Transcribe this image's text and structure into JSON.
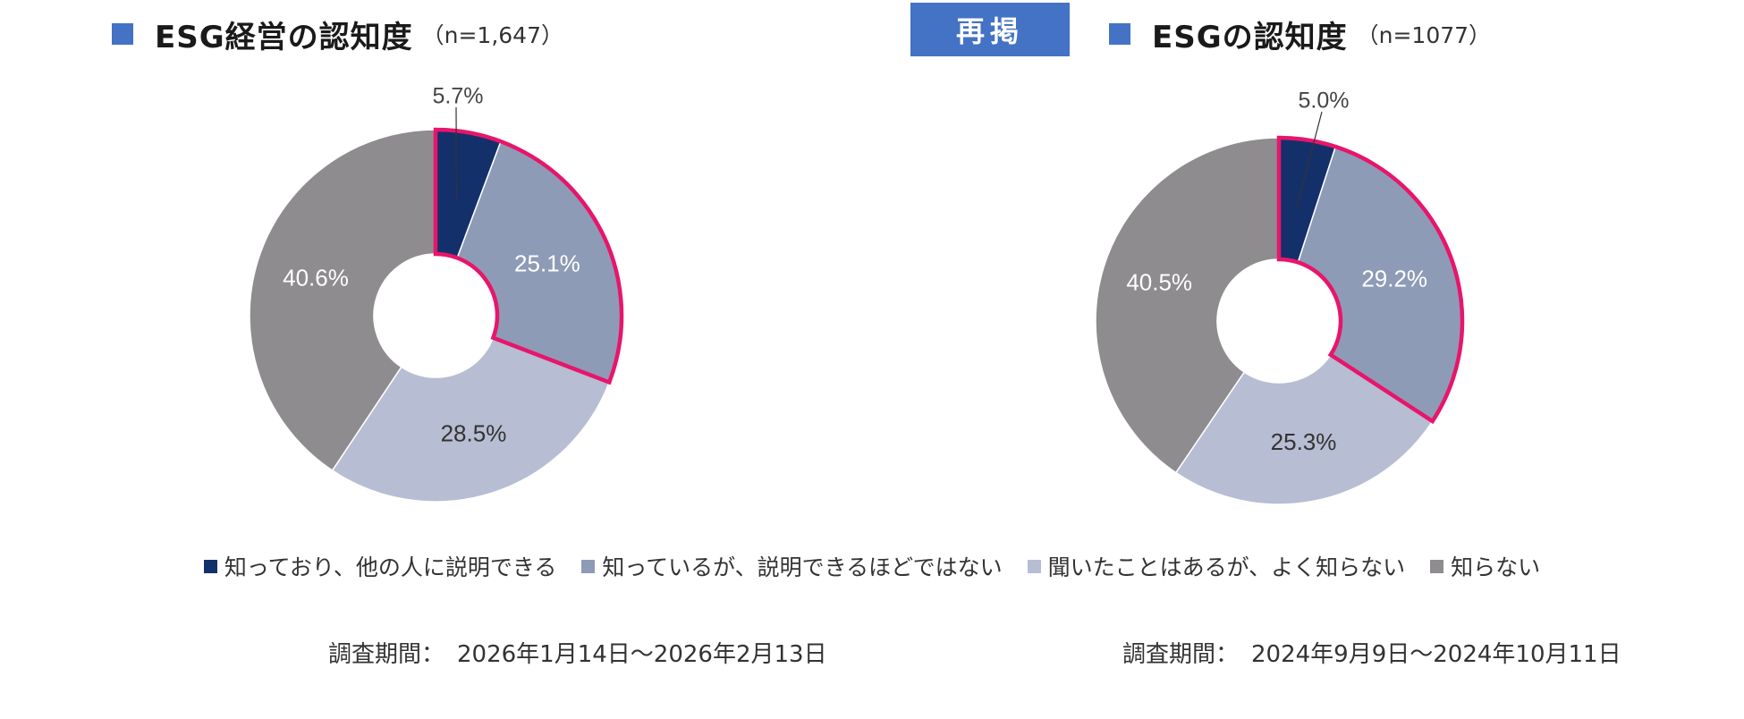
{
  "badge": {
    "label": "再掲",
    "color": "#4472C4"
  },
  "titles": [
    {
      "main": "ESG経営の認知度",
      "n": "（n=1,647）"
    },
    {
      "main": "ESGの認知度",
      "n": "（n=1077）"
    }
  ],
  "legend": [
    {
      "label": "知っており、他の人に説明できる",
      "color": "#14306B"
    },
    {
      "label": "知っているが、説明できるほどではない",
      "color": "#8E9BB6"
    },
    {
      "label": "聞いたことはあるが、よく知らない",
      "color": "#B7BDD2"
    },
    {
      "label": "知らない",
      "color": "#8E8C8E"
    }
  ],
  "periods": [
    {
      "label": "調査期間：",
      "value": "2026年1月14日～2026年2月13日"
    },
    {
      "label": "調査期間：",
      "value": "2024年9月9日～2024年10月11日"
    }
  ],
  "colors": {
    "title_square": "#4472C4",
    "highlight_outline": "#E8156B"
  },
  "chart_data": [
    {
      "type": "pie",
      "subtype": "donut",
      "title": "ESG経営の認知度",
      "sample_size": "n=1,647",
      "categories": [
        "知っており、他の人に説明できる",
        "知っているが、説明できるほどではない",
        "聞いたことはあるが、よく知らない",
        "知らない"
      ],
      "values": [
        5.7,
        25.1,
        28.5,
        40.6
      ],
      "labels": [
        "5.7%",
        "25.1%",
        "28.5%",
        "40.6%"
      ],
      "highlighted": [
        0,
        1
      ],
      "legend_position": "bottom"
    },
    {
      "type": "pie",
      "subtype": "donut",
      "title": "ESGの認知度",
      "sample_size": "n=1077",
      "categories": [
        "知っており、他の人に説明できる",
        "知っているが、説明できるほどではない",
        "聞いたことはあるが、よく知らない",
        "知らない"
      ],
      "values": [
        5.0,
        29.2,
        25.3,
        40.5
      ],
      "labels": [
        "5.0%",
        "29.2%",
        "25.3%",
        "40.5%"
      ],
      "highlighted": [
        0,
        1
      ],
      "legend_position": "bottom"
    }
  ]
}
